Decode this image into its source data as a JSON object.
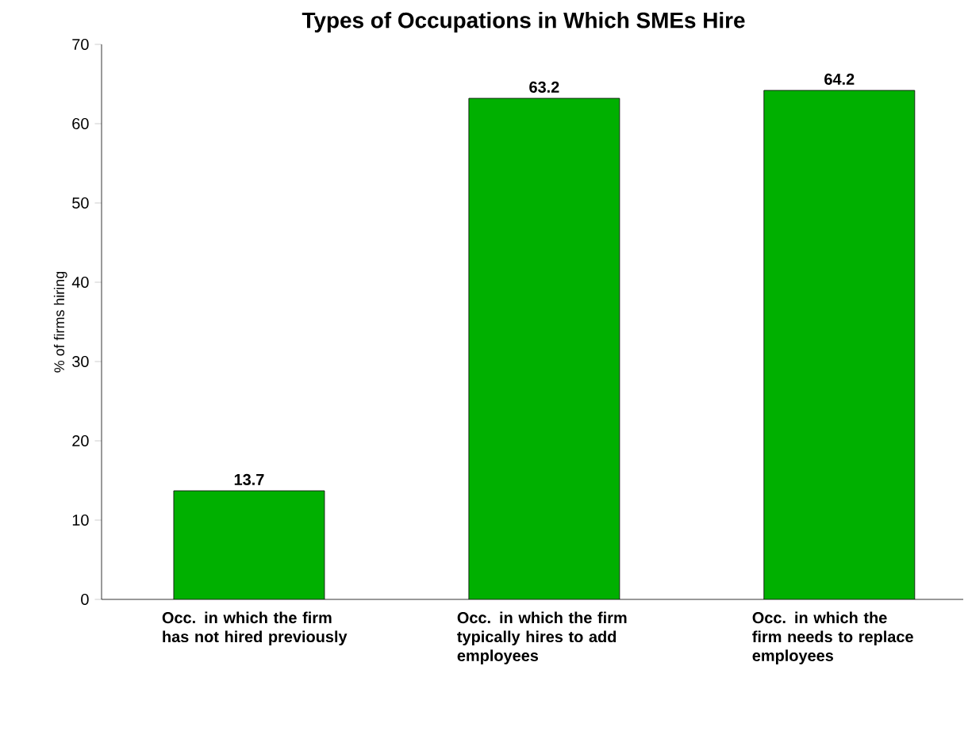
{
  "chart_data": {
    "type": "bar",
    "title": "Types of Occupations in Which SMEs Hire",
    "ylabel": "% of firms hiring",
    "categories": [
      "Occ.  in which the firm has not hired previously",
      "Occ.  in which the firm typically hires to add employees",
      "Occ.  in which the firm needs to replace employees"
    ],
    "values": [
      13.7,
      63.2,
      64.2
    ],
    "color": "#00b000",
    "data_labels": true,
    "ylim": [
      0,
      70
    ],
    "yticks": [
      0,
      10,
      20,
      30,
      40,
      50,
      60,
      70
    ]
  }
}
